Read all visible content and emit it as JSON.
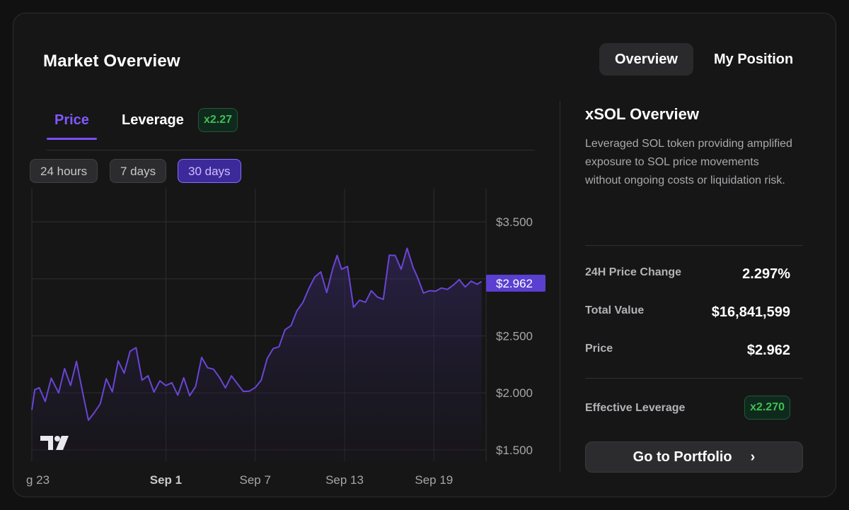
{
  "header": {
    "title": "Market Overview"
  },
  "top_tabs": [
    {
      "label": "Overview",
      "active": true
    },
    {
      "label": "My Position",
      "active": false
    }
  ],
  "sub_tabs": [
    {
      "label": "Price",
      "active": true
    },
    {
      "label": "Leverage",
      "active": false
    }
  ],
  "leverage_badge": "x2.27",
  "ranges": [
    {
      "label": "24 hours",
      "active": false
    },
    {
      "label": "7 days",
      "active": false
    },
    {
      "label": "30 days",
      "active": true
    }
  ],
  "chart_data": {
    "type": "area",
    "x_ticks": [
      "g 23",
      "Sep 1",
      "Sep 7",
      "Sep 13",
      "Sep 19"
    ],
    "bold_x_tick": "Sep 1",
    "y_ticks": [
      "$3.500",
      "$2.500",
      "$2.000",
      "$1.500"
    ],
    "ylim": [
      1.4,
      3.68
    ],
    "xlim": [
      0,
      30.5
    ],
    "current_price_label": "$2.962",
    "current_price": 2.962,
    "line_color": "#6a45d6",
    "series": [
      {
        "x": [
          0,
          0.2,
          0.5,
          0.9,
          1.3,
          1.8,
          2.2,
          2.6,
          3.0,
          3.4,
          3.8,
          4.2,
          4.6,
          5.0,
          5.4,
          5.8,
          6.2,
          6.6,
          7.0,
          7.4,
          7.8,
          8.2,
          8.6,
          9.0,
          9.4,
          9.8,
          10.2,
          10.6,
          11.0,
          11.4,
          11.8,
          12.2,
          12.6,
          13.0,
          13.4,
          13.8,
          14.2,
          14.6,
          15.0,
          15.4,
          15.8,
          16.2,
          16.6,
          17.0,
          17.4,
          17.8,
          18.2,
          18.6,
          19.0,
          19.4,
          19.8,
          20.2,
          20.5,
          20.8,
          21.2,
          21.6,
          22.0,
          22.4,
          22.8,
          23.2,
          23.6,
          24.0,
          24.4,
          24.8,
          25.2,
          25.6,
          25.9,
          26.3,
          26.7,
          27.1,
          27.5,
          27.9,
          28.3,
          28.7,
          29.1,
          29.5,
          29.9,
          30.2
        ],
        "values": [
          1.85,
          2.02,
          2.06,
          1.92,
          2.14,
          2.0,
          2.22,
          2.05,
          2.28,
          2.0,
          1.76,
          1.82,
          1.92,
          2.12,
          2.02,
          2.28,
          2.18,
          2.35,
          2.4,
          2.1,
          2.15,
          2.0,
          2.12,
          2.06,
          2.1,
          1.98,
          2.14,
          1.96,
          2.06,
          2.3,
          2.22,
          2.2,
          2.15,
          2.04,
          2.16,
          2.08,
          2.02,
          2.0,
          2.05,
          2.1,
          2.3,
          2.38,
          2.42,
          2.55,
          2.6,
          2.72,
          2.8,
          2.9,
          3.02,
          3.05,
          2.88,
          3.08,
          3.22,
          3.08,
          3.12,
          2.75,
          2.82,
          2.78,
          2.9,
          2.83,
          2.82,
          3.2,
          3.22,
          3.08,
          3.28,
          3.1,
          3.02,
          2.86,
          2.9,
          2.88,
          2.92,
          2.9,
          2.96,
          2.99,
          2.94,
          2.98,
          2.96,
          2.962
        ]
      }
    ]
  },
  "overview": {
    "title": "xSOL Overview",
    "description": "Leveraged SOL token providing amplified exposure to SOL price movements without ongoing costs or liquidation risk.",
    "stats": [
      {
        "label": "24H Price Change",
        "value": "2.297%"
      },
      {
        "label": "Total Value",
        "value": "$16,841,599"
      },
      {
        "label": "Price",
        "value": "$2.962"
      }
    ],
    "effective_leverage_label": "Effective Leverage",
    "effective_leverage_value": "x2.270",
    "portfolio_button": "Go to Portfolio"
  },
  "icons": {
    "chevron": "chevron-right-icon",
    "logo": "tradingview-logo-icon"
  }
}
